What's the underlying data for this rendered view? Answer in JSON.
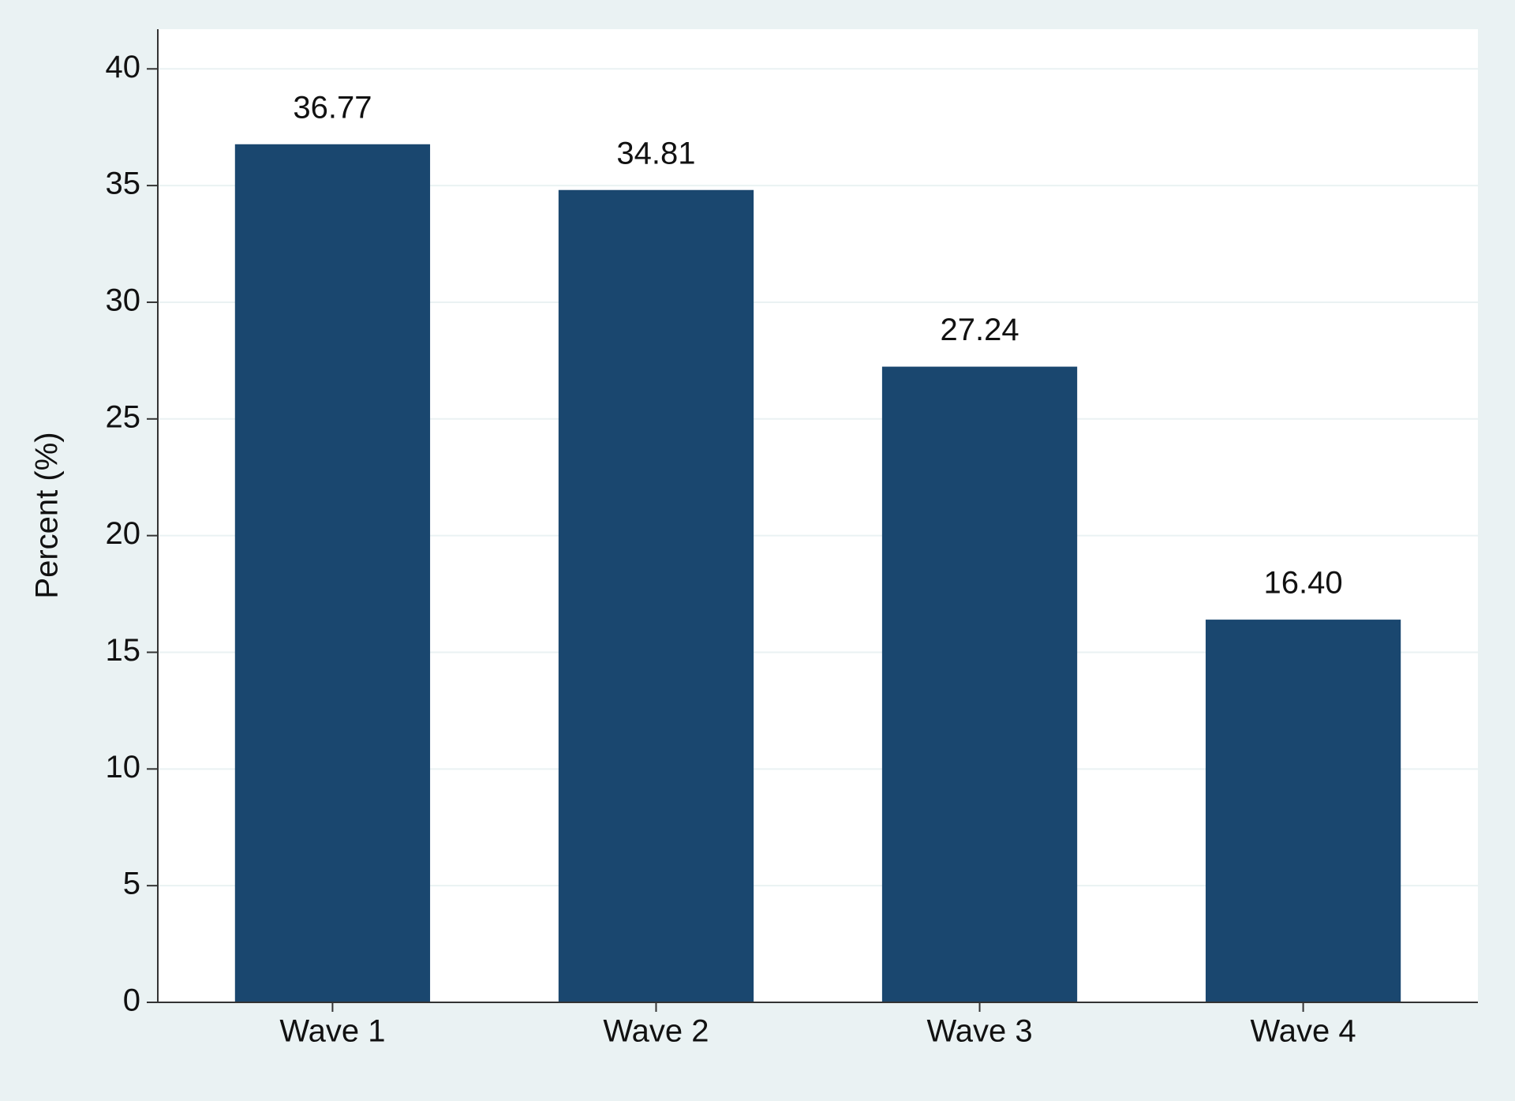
{
  "chart_data": {
    "type": "bar",
    "y_axis_label": "Percent (%)",
    "categories": [
      "Wave 1",
      "Wave 2",
      "Wave 3",
      "Wave 4"
    ],
    "values": [
      36.77,
      34.81,
      27.24,
      16.4
    ],
    "value_labels": [
      "36.77",
      "34.81",
      "27.24",
      "16.40"
    ],
    "color": "#1a476f",
    "ylim": [
      0,
      41.7
    ],
    "yticks": [
      0,
      5,
      10,
      15,
      20,
      25,
      30,
      35,
      40
    ],
    "grid": true
  }
}
